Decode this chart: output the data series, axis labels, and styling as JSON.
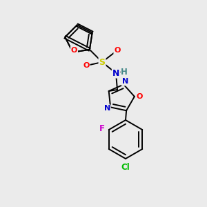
{
  "background_color": "#ebebeb",
  "bond_color": "#000000",
  "atom_colors": {
    "O": "#ff0000",
    "N": "#0000cc",
    "S": "#cccc00",
    "F": "#cc00cc",
    "Cl": "#00bb00",
    "H": "#448888",
    "C": "#000000"
  },
  "figsize": [
    3.0,
    3.0
  ],
  "dpi": 100
}
